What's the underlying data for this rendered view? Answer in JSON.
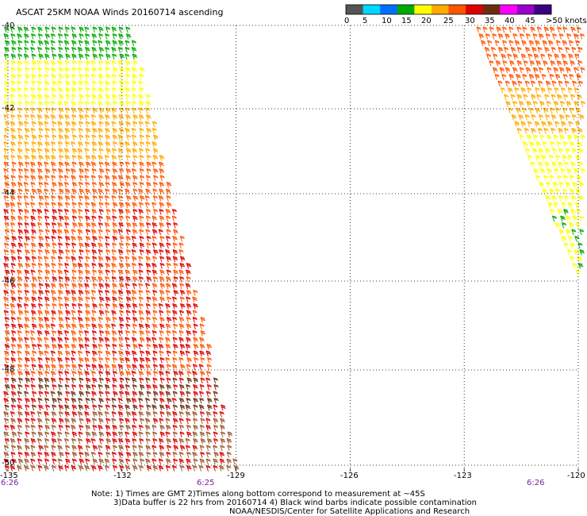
{
  "title": "ASCAT 25KM NOAA Winds 20160714 ascending",
  "colorbar": {
    "labels": [
      "0",
      "5",
      "10",
      "15",
      "20",
      "25",
      "30",
      "35",
      "40",
      "45",
      ">50 knots"
    ],
    "colors": [
      "#555555",
      "#00d7ff",
      "#0070ff",
      "#00aa00",
      "#ffff00",
      "#ffaa00",
      "#ff5500",
      "#dd0000",
      "#6b2f10",
      "#ff00ff",
      "#9a00cc",
      "#3a0080"
    ]
  },
  "lat_labels": [
    "-40",
    "-42",
    "-44",
    "-46",
    "-48",
    "-50"
  ],
  "lon_labels": [
    "-135",
    "-132",
    "-129",
    "-126",
    "-123",
    "-120"
  ],
  "time_labels": [
    "6:26",
    "6:25",
    "6:26"
  ],
  "notes": [
    "Note: 1) Times are GMT 2)Times along bottom correspond to measurement at ~45S",
    "3)Data buffer is 22 hrs from 20160714 4) Black wind barbs indicate possible contamination",
    "NOAA/NESDIS/Center for Satellite Applications and Research"
  ],
  "chart_data": {
    "type": "wind-barb-map",
    "lat_range": [
      -50,
      -40
    ],
    "lon_range": [
      -135,
      -120
    ],
    "grid": true,
    "swaths": [
      {
        "name": "",
        "lon_range_at_lat_-40": [
          -135,
          -131.5
        ],
        "lon_range_at_lat_-50": [
          -135,
          -129
        ]
      },
      {
        "name": "",
        "lon_range_at_lat_-40": [
          -122.5,
          -120
        ],
        "lon_range_at_lat_-46": [
          -120.2,
          -120
        ]
      }
    ]
  }
}
